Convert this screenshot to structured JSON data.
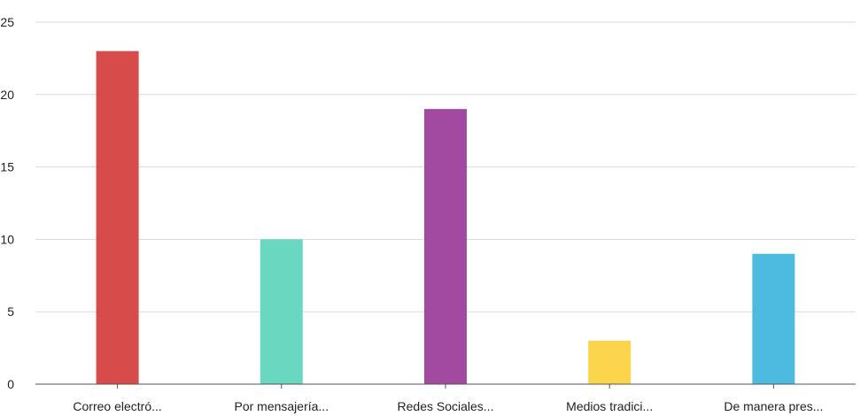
{
  "chart_data": {
    "type": "bar",
    "categories": [
      "Correo electró...",
      "Por mensajería...",
      "Redes Sociales...",
      "Medios tradici...",
      "De manera pres..."
    ],
    "values": [
      23,
      10,
      19,
      3,
      9
    ],
    "colors": [
      "#d84b4b",
      "#6ad8c0",
      "#a24aa2",
      "#fdd54d",
      "#4dbbe0"
    ],
    "ylim": [
      0,
      25
    ],
    "yticks": [
      0,
      5,
      10,
      15,
      20,
      25
    ],
    "grid": true,
    "legend": "none"
  }
}
